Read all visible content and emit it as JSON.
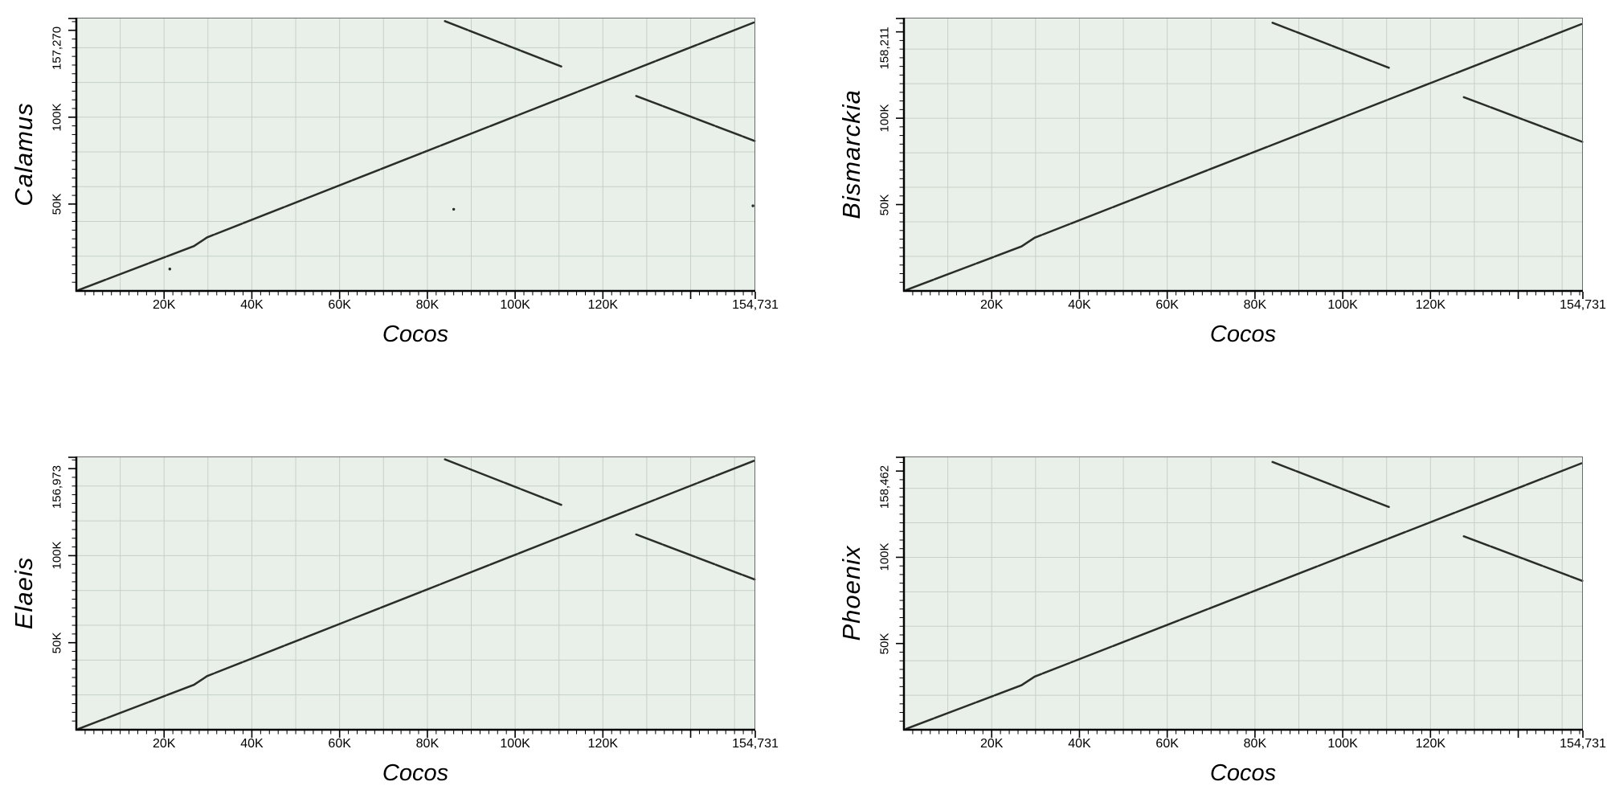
{
  "figure": {
    "x_axis_title": "Cocos",
    "x_max": 154731,
    "x_max_label": "154,731",
    "x_tick_values": [
      20000,
      40000,
      60000,
      80000,
      100000,
      120000
    ],
    "x_tick_labels": [
      "20K",
      "40K",
      "60K",
      "80K",
      "100K",
      "120K"
    ],
    "x_major_unlabeled": [
      140000
    ],
    "x_minor_step": 2000,
    "y_tick_values": [
      50000,
      100000
    ],
    "y_tick_labels": [
      "50K",
      "100K"
    ],
    "y_major_unlabeled": [
      150000
    ],
    "y_minor_step": 5000,
    "grid_x_step": 10000,
    "grid_y_step": 20000,
    "colors": {
      "plot_background": "#e9f0ea",
      "grid_line": "#c6d0c7",
      "frame": "#6a6a6a",
      "axis": "#000000",
      "alignment_line": "#2a2d2a",
      "text": "#000000",
      "page_background": "#ffffff"
    }
  },
  "alignment_segments": {
    "main_diagonal": [
      [
        500,
        500
      ],
      [
        26800,
        25800
      ],
      [
        29800,
        30800
      ],
      [
        154400,
        154500
      ]
    ],
    "inverted_repeat_upper": [
      [
        84000,
        155300
      ],
      [
        110500,
        129200
      ]
    ],
    "inverted_repeat_lower": [
      [
        127600,
        112200
      ],
      [
        154600,
        86300
      ]
    ]
  },
  "panels": [
    {
      "y_axis_title": "Calamus",
      "y_max": 157270,
      "y_max_label": "157,270",
      "specks": [
        [
          21300,
          12600
        ],
        [
          86000,
          47000
        ],
        [
          154200,
          49000
        ]
      ]
    },
    {
      "y_axis_title": "Bismarckia",
      "y_max": 158211,
      "y_max_label": "158,211",
      "specks": []
    },
    {
      "y_axis_title": "Elaeis",
      "y_max": 156973,
      "y_max_label": "156,973",
      "specks": []
    },
    {
      "y_axis_title": "Phoenix",
      "y_max": 158462,
      "y_max_label": "158,462",
      "specks": []
    }
  ],
  "chart_data": [
    {
      "type": "line",
      "title": "Dot plot: Calamus vs Cocos",
      "xlabel": "Cocos",
      "ylabel": "Calamus",
      "xlim": [
        0,
        154731
      ],
      "ylim": [
        0,
        157270
      ],
      "x_ticks": [
        "20K",
        "40K",
        "60K",
        "80K",
        "100K",
        "120K",
        "154,731"
      ],
      "y_ticks": [
        "50K",
        "100K",
        "157,270"
      ],
      "grid": true,
      "legend": false,
      "series": [
        {
          "name": "forward alignment (main diagonal)",
          "points": [
            [
              500,
              500
            ],
            [
              26800,
              25800
            ],
            [
              29800,
              30800
            ],
            [
              154400,
              154500
            ]
          ]
        },
        {
          "name": "inverted repeat match (upper)",
          "points": [
            [
              84000,
              155300
            ],
            [
              110500,
              129200
            ]
          ]
        },
        {
          "name": "inverted repeat match (lower)",
          "points": [
            [
              127600,
              112200
            ],
            [
              154600,
              86300
            ]
          ]
        },
        {
          "name": "isolated matches",
          "points": [
            [
              21300,
              12600
            ],
            [
              86000,
              47000
            ],
            [
              154200,
              49000
            ]
          ]
        }
      ]
    },
    {
      "type": "line",
      "title": "Dot plot: Bismarckia vs Cocos",
      "xlabel": "Cocos",
      "ylabel": "Bismarckia",
      "xlim": [
        0,
        154731
      ],
      "ylim": [
        0,
        158211
      ],
      "x_ticks": [
        "20K",
        "40K",
        "60K",
        "80K",
        "100K",
        "120K",
        "154,731"
      ],
      "y_ticks": [
        "50K",
        "100K",
        "158,211"
      ],
      "grid": true,
      "legend": false,
      "series": [
        {
          "name": "forward alignment (main diagonal)",
          "points": [
            [
              500,
              500
            ],
            [
              26800,
              25800
            ],
            [
              29800,
              30800
            ],
            [
              154400,
              154500
            ]
          ]
        },
        {
          "name": "inverted repeat match (upper)",
          "points": [
            [
              84000,
              155300
            ],
            [
              110500,
              129200
            ]
          ]
        },
        {
          "name": "inverted repeat match (lower)",
          "points": [
            [
              127600,
              112200
            ],
            [
              154600,
              86300
            ]
          ]
        }
      ]
    },
    {
      "type": "line",
      "title": "Dot plot: Elaeis vs Cocos",
      "xlabel": "Cocos",
      "ylabel": "Elaeis",
      "xlim": [
        0,
        154731
      ],
      "ylim": [
        0,
        156973
      ],
      "x_ticks": [
        "20K",
        "40K",
        "60K",
        "80K",
        "100K",
        "120K",
        "154,731"
      ],
      "y_ticks": [
        "50K",
        "100K",
        "156,973"
      ],
      "grid": true,
      "legend": false,
      "series": [
        {
          "name": "forward alignment (main diagonal)",
          "points": [
            [
              500,
              500
            ],
            [
              26800,
              25800
            ],
            [
              29800,
              30800
            ],
            [
              154400,
              154500
            ]
          ]
        },
        {
          "name": "inverted repeat match (upper)",
          "points": [
            [
              84000,
              155300
            ],
            [
              110500,
              129200
            ]
          ]
        },
        {
          "name": "inverted repeat match (lower)",
          "points": [
            [
              127600,
              112200
            ],
            [
              154600,
              86300
            ]
          ]
        }
      ]
    },
    {
      "type": "line",
      "title": "Dot plot: Phoenix vs Cocos",
      "xlabel": "Cocos",
      "ylabel": "Phoenix",
      "xlim": [
        0,
        154731
      ],
      "ylim": [
        0,
        158462
      ],
      "x_ticks": [
        "20K",
        "40K",
        "60K",
        "80K",
        "100K",
        "120K",
        "154,731"
      ],
      "y_ticks": [
        "50K",
        "100K",
        "158,462"
      ],
      "grid": true,
      "legend": false,
      "series": [
        {
          "name": "forward alignment (main diagonal)",
          "points": [
            [
              500,
              500
            ],
            [
              26800,
              25800
            ],
            [
              29800,
              30800
            ],
            [
              154400,
              154500
            ]
          ]
        },
        {
          "name": "inverted repeat match (upper)",
          "points": [
            [
              84000,
              155300
            ],
            [
              110500,
              129200
            ]
          ]
        },
        {
          "name": "inverted repeat match (lower)",
          "points": [
            [
              127600,
              112200
            ],
            [
              154600,
              86300
            ]
          ]
        }
      ]
    }
  ]
}
